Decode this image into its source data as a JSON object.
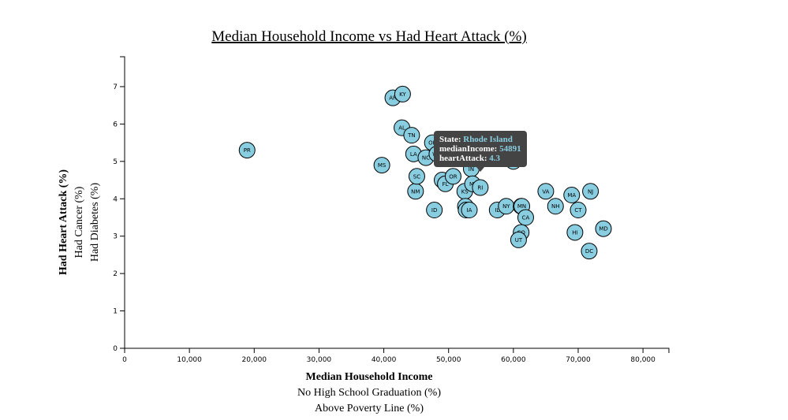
{
  "chart_data": {
    "type": "scatter",
    "title": "Median Household Income vs Had Heart Attack (%)",
    "x_axis_labels": [
      "Median Household Income",
      "No High School Graduation (%)",
      "Above Poverty Line (%)"
    ],
    "y_axis_labels": [
      "Had Heart Attack (%)",
      "Had Cancer (%)",
      "Had Diabetes (%)"
    ],
    "active_x_label": "Median Household Income",
    "active_y_label": "Had Heart Attack (%)",
    "xlim": [
      0,
      84000
    ],
    "ylim": [
      0,
      7.8
    ],
    "x_ticks": [
      0,
      10000,
      20000,
      30000,
      40000,
      50000,
      60000,
      70000,
      80000
    ],
    "x_tick_labels": [
      "0",
      "10,000",
      "20,000",
      "30,000",
      "40,000",
      "50,000",
      "60,000",
      "70,000",
      "80,000"
    ],
    "y_ticks": [
      0,
      1,
      2,
      3,
      4,
      5,
      6,
      7
    ],
    "y_tick_labels": [
      "0",
      "1",
      "2",
      "3",
      "4",
      "5",
      "6",
      "7"
    ],
    "marker_color": "#89cde0",
    "points": [
      {
        "state": "PR",
        "x": 18900,
        "y": 5.3
      },
      {
        "state": "MS",
        "x": 39700,
        "y": 4.9
      },
      {
        "state": "AR",
        "x": 41400,
        "y": 6.7
      },
      {
        "state": "KY",
        "x": 42900,
        "y": 6.8
      },
      {
        "state": "AL",
        "x": 42800,
        "y": 5.9
      },
      {
        "state": "TN",
        "x": 44300,
        "y": 5.7
      },
      {
        "state": "LA",
        "x": 44600,
        "y": 5.2
      },
      {
        "state": "NM",
        "x": 44900,
        "y": 4.2
      },
      {
        "state": "SC",
        "x": 45100,
        "y": 4.6
      },
      {
        "state": "NC",
        "x": 46500,
        "y": 5.1
      },
      {
        "state": "OK",
        "x": 47500,
        "y": 5.5
      },
      {
        "state": "WV",
        "x": 48200,
        "y": 5.2
      },
      {
        "state": "ID",
        "x": 47800,
        "y": 3.7
      },
      {
        "state": "GA",
        "x": 49000,
        "y": 4.5
      },
      {
        "state": "FL",
        "x": 49500,
        "y": 4.4
      },
      {
        "state": "OR",
        "x": 50700,
        "y": 4.6
      },
      {
        "state": "KS",
        "x": 52500,
        "y": 4.2
      },
      {
        "state": "NE",
        "x": 52600,
        "y": 3.8
      },
      {
        "state": "WI",
        "x": 52700,
        "y": 3.7
      },
      {
        "state": "IA",
        "x": 53200,
        "y": 3.7
      },
      {
        "state": "IN",
        "x": 53500,
        "y": 4.8
      },
      {
        "state": "MI",
        "x": 53700,
        "y": 4.4
      },
      {
        "state": "RI",
        "x": 54891,
        "y": 4.3
      },
      {
        "state": "DE",
        "x": 60000,
        "y": 5.0
      },
      {
        "state": "IL",
        "x": 57500,
        "y": 3.7
      },
      {
        "state": "NY",
        "x": 58900,
        "y": 3.8
      },
      {
        "state": "WA",
        "x": 61200,
        "y": 3.8
      },
      {
        "state": "MN",
        "x": 61300,
        "y": 3.8
      },
      {
        "state": "CA",
        "x": 61900,
        "y": 3.5
      },
      {
        "state": "CO",
        "x": 61200,
        "y": 3.1
      },
      {
        "state": "UT",
        "x": 60800,
        "y": 2.9
      },
      {
        "state": "VA",
        "x": 65000,
        "y": 4.2
      },
      {
        "state": "NH",
        "x": 66500,
        "y": 3.8
      },
      {
        "state": "MA",
        "x": 69000,
        "y": 4.1
      },
      {
        "state": "CT",
        "x": 70000,
        "y": 3.7
      },
      {
        "state": "HI",
        "x": 69500,
        "y": 3.1
      },
      {
        "state": "NJ",
        "x": 71900,
        "y": 4.2
      },
      {
        "state": "DC",
        "x": 71700,
        "y": 2.6
      },
      {
        "state": "MD",
        "x": 73900,
        "y": 3.2
      }
    ]
  },
  "tooltip": {
    "state_label": "State:",
    "state_value": "Rhode Island",
    "x_label": "medianIncome:",
    "x_value": "54891",
    "y_label": "heartAttack:",
    "y_value": "4.3"
  }
}
